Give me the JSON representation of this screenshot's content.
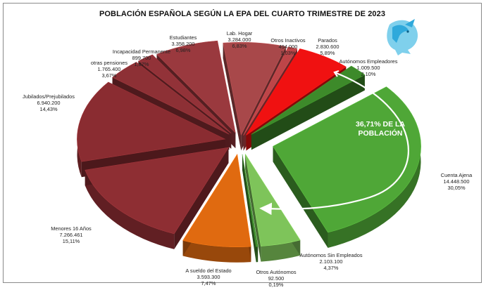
{
  "chart_data": {
    "type": "pie",
    "title": "POBLACIÓN ESPAÑOLA SEGÚN LA EPA DEL CUARTO TRIMESTRE DE 2023",
    "annotation": "36,71% DE LA POBLACIÓN",
    "slices": [
      {
        "id": "lab-hogar",
        "name": "Lab. Hogar",
        "value_text": "3.284.000",
        "percent_text": "6,83%",
        "value": 3284000,
        "percent": 6.83,
        "color": "#a8484a"
      },
      {
        "id": "otros-inactivos",
        "name": "Otros Inactivos",
        "value_text": "494.000",
        "percent_text": "1,03%",
        "value": 494000,
        "percent": 1.03,
        "color": "#bd4548"
      },
      {
        "id": "parados",
        "name": "Parados",
        "value_text": "2.830.600",
        "percent_text": "5,89%",
        "value": 2830600,
        "percent": 5.89,
        "color": "#f01111"
      },
      {
        "id": "aut-empleadores",
        "name": "Autónomos Empleadores",
        "value_text": "1.009.500",
        "percent_text": "2,10%",
        "value": 1009500,
        "percent": 2.1,
        "color": "#3d8a2a"
      },
      {
        "id": "cuenta-ajena",
        "name": "Cuenta Ajena",
        "value_text": "14.448.500",
        "percent_text": "30,05%",
        "value": 14448500,
        "percent": 30.05,
        "color": "#4fa737"
      },
      {
        "id": "aut-sin-empl",
        "name": "Autónomos Sin Empleados",
        "value_text": "2.103.100",
        "percent_text": "4,37%",
        "value": 2103100,
        "percent": 4.37,
        "color": "#7ec45a"
      },
      {
        "id": "otros-autonomos",
        "name": "Otros Autónomos",
        "value_text": "92.500",
        "percent_text": "0,19%",
        "value": 92500,
        "percent": 0.19,
        "color": "#3f8a2d"
      },
      {
        "id": "sueldo-estado",
        "name": "A sueldo del Estado",
        "value_text": "3.593.300",
        "percent_text": "7,47%",
        "value": 3593300,
        "percent": 7.47,
        "color": "#e06a10"
      },
      {
        "id": "menores-16",
        "name": "Menores 16 Años",
        "value_text": "7.266.461",
        "percent_text": "15,11%",
        "value": 7266461,
        "percent": 15.11,
        "color": "#8e2e33"
      },
      {
        "id": "jubilados",
        "name": "Jubilados/Prejubilados",
        "value_text": "6.940.200",
        "percent_text": "14,43%",
        "value": 6940200,
        "percent": 14.43,
        "color": "#8a2c31"
      },
      {
        "id": "otras-pensiones",
        "name": "otras pensiones",
        "value_text": "1.765.400",
        "percent_text": "3,67%",
        "value": 1765400,
        "percent": 3.67,
        "color": "#8d3035"
      },
      {
        "id": "incapacidad",
        "name": "Incapacidad Permanente",
        "value_text": "899.700",
        "percent_text": "1,87%",
        "value": 899700,
        "percent": 1.87,
        "color": "#923238"
      },
      {
        "id": "estudiantes",
        "name": "Estudiantes",
        "value_text": "3.358.200",
        "percent_text": "6,98%",
        "value": 3358200,
        "percent": 6.98,
        "color": "#9a393e"
      }
    ]
  }
}
